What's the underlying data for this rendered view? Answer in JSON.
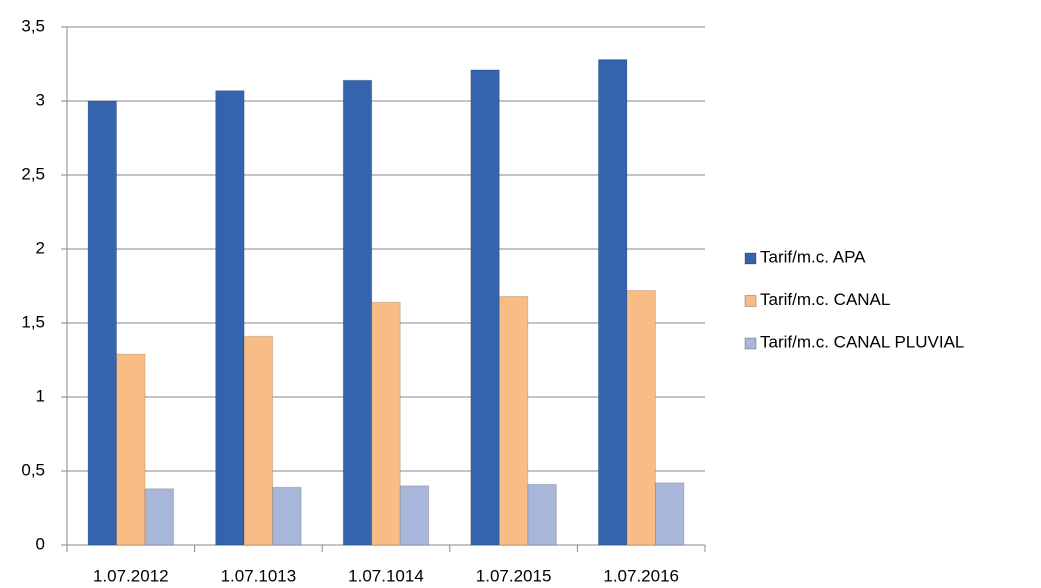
{
  "chart_data": {
    "type": "bar",
    "categories": [
      "1.07.2012",
      "1.07.1013",
      "1.07.1014",
      "1.07.2015",
      "1.07.2016"
    ],
    "series": [
      {
        "name": "Tarif/m.c. APA",
        "color": "#3563ad",
        "values": [
          3.0,
          3.07,
          3.14,
          3.21,
          3.28
        ]
      },
      {
        "name": "Tarif/m.c. CANAL",
        "color": "#f8bd86",
        "values": [
          1.29,
          1.41,
          1.64,
          1.68,
          1.72
        ]
      },
      {
        "name": "Tarif/m.c. CANAL PLUVIAL",
        "color": "#a7b6d9",
        "values": [
          0.38,
          0.39,
          0.4,
          0.41,
          0.42
        ]
      }
    ],
    "ylim": [
      0,
      3.5
    ],
    "yticks": [
      0,
      {
        "value": 0.5,
        "label": "0,5"
      },
      1,
      {
        "value": 1.5,
        "label": "1,5"
      },
      2,
      {
        "value": 2.5,
        "label": "2,5"
      },
      3,
      {
        "value": 3.5,
        "label": "3,5"
      }
    ],
    "grid": true,
    "legend": "right"
  }
}
